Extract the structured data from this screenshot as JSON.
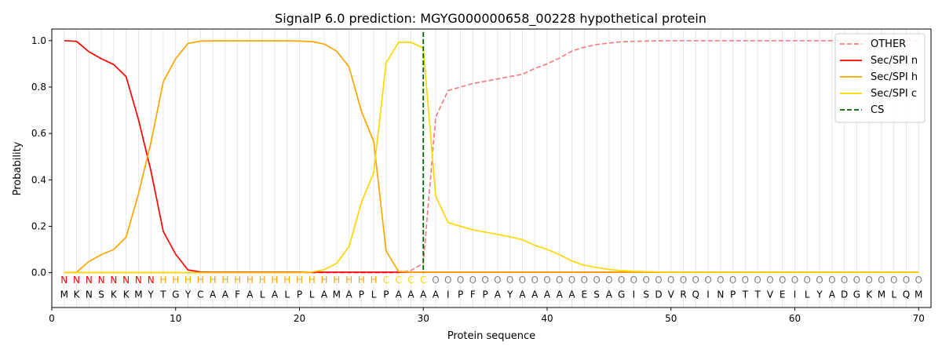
{
  "chart_data": {
    "type": "line",
    "title": "SignalP 6.0 prediction: MGYG000000658_00228 hypothetical protein",
    "xlabel": "Protein sequence",
    "ylabel": "Probability",
    "xlim": [
      0,
      71
    ],
    "ylim": [
      -0.15,
      1.05
    ],
    "x_ticks": [
      "0",
      "10",
      "20",
      "30",
      "40",
      "50",
      "60",
      "70"
    ],
    "y_ticks": [
      "0.0",
      "0.2",
      "0.4",
      "0.6",
      "0.8",
      "1.0"
    ],
    "grid": "vertical lines at each residue",
    "legend_position": "top-right",
    "x": [
      1,
      2,
      3,
      4,
      5,
      6,
      7,
      8,
      9,
      10,
      11,
      12,
      13,
      14,
      15,
      16,
      17,
      18,
      19,
      20,
      21,
      22,
      23,
      24,
      25,
      26,
      27,
      28,
      29,
      30,
      31,
      32,
      33,
      34,
      35,
      36,
      37,
      38,
      39,
      40,
      41,
      42,
      43,
      44,
      45,
      46,
      47,
      48,
      49,
      50,
      51,
      52,
      53,
      54,
      55,
      56,
      57,
      58,
      59,
      60,
      61,
      62,
      63,
      64,
      65,
      66,
      67,
      68,
      69,
      70
    ],
    "sequence": [
      "M",
      "K",
      "N",
      "S",
      "K",
      "K",
      "M",
      "Y",
      "T",
      "G",
      "Y",
      "C",
      "A",
      "A",
      "F",
      "A",
      "L",
      "A",
      "L",
      "P",
      "L",
      "A",
      "M",
      "A",
      "P",
      "L",
      "P",
      "A",
      "A",
      "A",
      "A",
      "I",
      "P",
      "F",
      "P",
      "A",
      "Y",
      "A",
      "A",
      "A",
      "A",
      "A",
      "E",
      "S",
      "A",
      "G",
      "I",
      "S",
      "D",
      "V",
      "R",
      "Q",
      "I",
      "N",
      "P",
      "T",
      "T",
      "V",
      "E",
      "I",
      "L",
      "Y",
      "A",
      "D",
      "G",
      "K",
      "M",
      "L",
      "Q",
      "M"
    ],
    "labels": [
      "N",
      "N",
      "N",
      "N",
      "N",
      "N",
      "N",
      "N",
      "H",
      "H",
      "H",
      "H",
      "H",
      "H",
      "H",
      "H",
      "H",
      "H",
      "H",
      "H",
      "H",
      "H",
      "H",
      "H",
      "H",
      "H",
      "C",
      "C",
      "C",
      "C",
      "O",
      "O",
      "O",
      "O",
      "O",
      "O",
      "O",
      "O",
      "O",
      "O",
      "O",
      "O",
      "O",
      "O",
      "O",
      "O",
      "O",
      "O",
      "O",
      "O",
      "O",
      "O",
      "O",
      "O",
      "O",
      "O",
      "O",
      "O",
      "O",
      "O",
      "O",
      "O",
      "O",
      "O",
      "O",
      "O",
      "O",
      "O",
      "O",
      "O"
    ],
    "label_colors": {
      "N": "#ff0000",
      "H": "#ffa500",
      "C": "#ffd700",
      "O": "#808080"
    },
    "cleavage_site": 30,
    "series": [
      {
        "name": "OTHER",
        "color": "#f08080",
        "dash": "dashed",
        "values": [
          0,
          0,
          0,
          0,
          0,
          0,
          0,
          0,
          0,
          0,
          0,
          0,
          0,
          0,
          0,
          0,
          0,
          0,
          0,
          0,
          0,
          0,
          0,
          0,
          0,
          0,
          0,
          0,
          0.01,
          0.04,
          0.67,
          0.785,
          0.8,
          0.815,
          0.825,
          0.835,
          0.845,
          0.855,
          0.88,
          0.9,
          0.925,
          0.955,
          0.972,
          0.983,
          0.99,
          0.995,
          0.997,
          0.998,
          0.999,
          1,
          1,
          1,
          1,
          1,
          1,
          1,
          1,
          1,
          1,
          1,
          1,
          1,
          1,
          1,
          1,
          1,
          1,
          1,
          1,
          1
        ]
      },
      {
        "name": "Sec/SPI n",
        "color": "#ff0000",
        "dash": "solid",
        "values": [
          1,
          0.997,
          0.952,
          0.922,
          0.897,
          0.845,
          0.66,
          0.44,
          0.178,
          0.08,
          0.012,
          0.003,
          0.002,
          0.002,
          0.002,
          0.002,
          0.002,
          0.002,
          0.002,
          0.002,
          0.002,
          0.002,
          0.002,
          0.002,
          0.002,
          0.002,
          0.002,
          0.002,
          0.002,
          0.002,
          0.002,
          0.002,
          0.002,
          0.002,
          0.002,
          0.002,
          0.002,
          0.002,
          0.002,
          0.002,
          0.002,
          0.002,
          0.002,
          0.002,
          0.002,
          0.002,
          0.002,
          0.002,
          0.002,
          0.002,
          0.002,
          0.002,
          0.002,
          0.002,
          0.002,
          0.002,
          0.002,
          0.002,
          0.002,
          0.002,
          0.002,
          0.002,
          0.002,
          0.002,
          0.002,
          0.002,
          0.002,
          0.002,
          0.002,
          0.002
        ]
      },
      {
        "name": "Sec/SPI h",
        "color": "#ffa500",
        "dash": "solid",
        "values": [
          0,
          0.002,
          0.048,
          0.078,
          0.1,
          0.153,
          0.34,
          0.56,
          0.823,
          0.922,
          0.988,
          0.998,
          0.999,
          0.999,
          0.999,
          0.999,
          0.999,
          0.999,
          0.999,
          0.998,
          0.996,
          0.985,
          0.955,
          0.887,
          0.695,
          0.565,
          0.093,
          0.005,
          0.002,
          0.002,
          0.002,
          0.002,
          0.002,
          0.002,
          0.002,
          0.002,
          0.002,
          0.002,
          0.002,
          0.002,
          0.002,
          0.002,
          0.002,
          0.002,
          0.002,
          0.002,
          0.002,
          0.002,
          0.002,
          0.002,
          0.002,
          0.002,
          0.002,
          0.002,
          0.002,
          0.002,
          0.002,
          0.002,
          0.002,
          0.002,
          0.002,
          0.002,
          0.002,
          0.002,
          0.002,
          0.002,
          0.002,
          0.002,
          0.002,
          0.002
        ]
      },
      {
        "name": "Sec/SPI c",
        "color": "#ffd700",
        "dash": "solid",
        "values": [
          0,
          0,
          0,
          0,
          0,
          0,
          0,
          0,
          0,
          0,
          0,
          0,
          0,
          0,
          0,
          0,
          0,
          0,
          0,
          0,
          0.003,
          0.013,
          0.04,
          0.112,
          0.303,
          0.432,
          0.904,
          0.993,
          0.993,
          0.968,
          0.33,
          0.216,
          0.2,
          0.185,
          0.175,
          0.165,
          0.155,
          0.142,
          0.118,
          0.1,
          0.078,
          0.05,
          0.032,
          0.022,
          0.014,
          0.009,
          0.006,
          0.004,
          0.003,
          0.002,
          0.002,
          0.002,
          0.002,
          0.002,
          0.002,
          0.002,
          0.002,
          0.002,
          0.002,
          0.002,
          0.002,
          0.002,
          0.002,
          0.002,
          0.002,
          0.002,
          0.002,
          0.002,
          0.002,
          0.002
        ]
      }
    ],
    "cs_legend": {
      "name": "CS",
      "color": "#006400",
      "dash": "dashed"
    }
  }
}
